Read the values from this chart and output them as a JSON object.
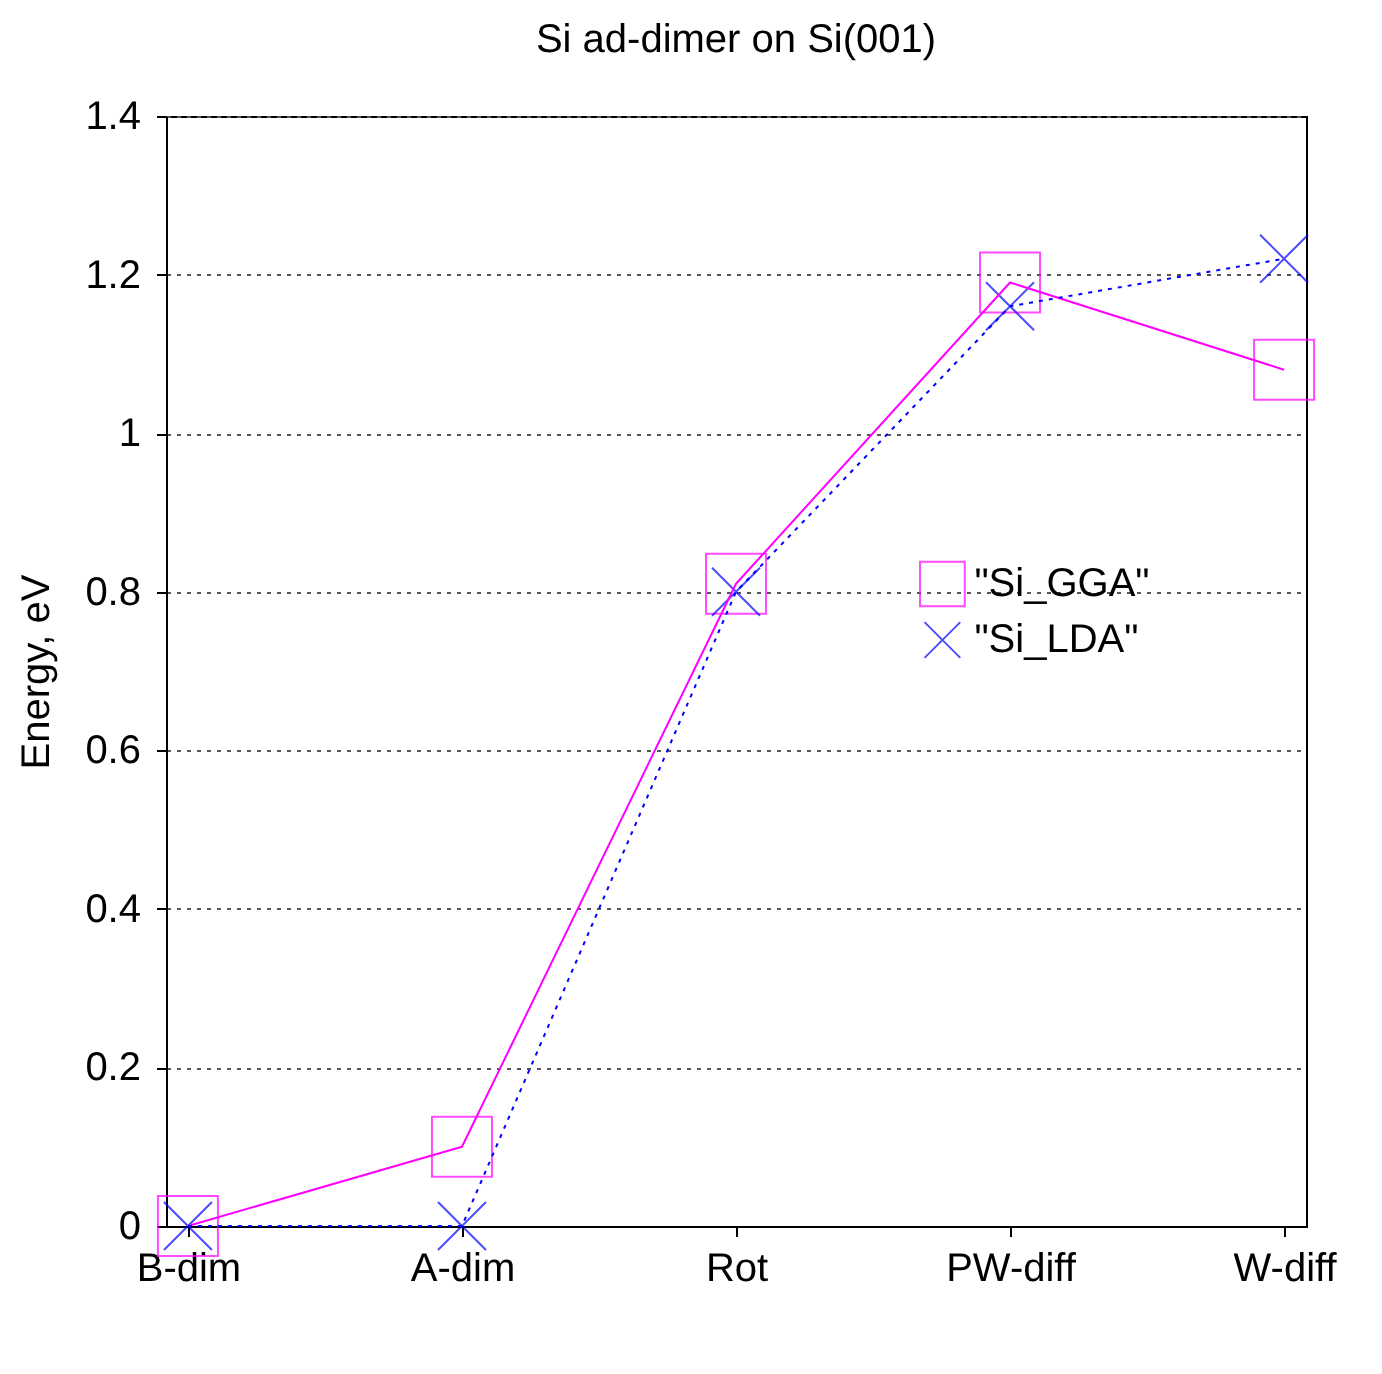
{
  "chart_data": {
    "type": "line",
    "title": "Si ad-dimer on Si(001)",
    "ylabel": "Energy, eV",
    "categories": [
      "B-dim",
      "A-dim",
      "Rot",
      "PW-diff",
      "W-diff"
    ],
    "ylim": [
      0,
      1.4
    ],
    "yticks": [
      0,
      0.2,
      0.4,
      0.6,
      0.8,
      1,
      1.2,
      1.4
    ],
    "series": [
      {
        "name": "\"Si_GGA\"",
        "color": "#ff00ff",
        "marker": "square",
        "line_style": "solid",
        "values": [
          0,
          0.1,
          0.81,
          1.19,
          1.08
        ]
      },
      {
        "name": "\"Si_LDA\"",
        "color": "#0000ff",
        "marker": "cross",
        "line_style": "dotted",
        "values": [
          0,
          0,
          0.8,
          1.16,
          1.22
        ]
      }
    ],
    "grid": "y",
    "legend": "right"
  }
}
